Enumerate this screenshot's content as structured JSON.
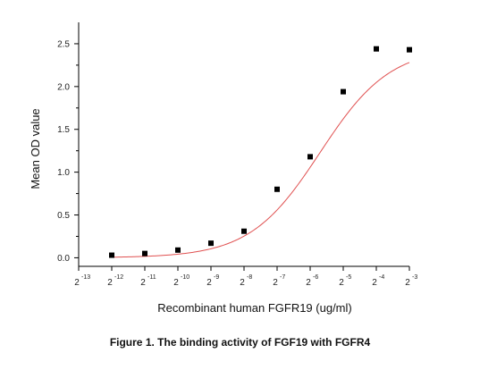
{
  "caption": "Figure 1. The binding activity of FGF19  with FGFR4",
  "chart_data": {
    "type": "scatter",
    "xlabel": "Recombinant human FGFR19 (ug/ml)",
    "ylabel": "Mean OD value",
    "x_scale": "log2",
    "x_tick_base": "2",
    "x_tick_exponents": [
      -13,
      -12,
      -11,
      -10,
      -9,
      -8,
      -7,
      -6,
      -5,
      -4,
      -3
    ],
    "xlim_exponent": [
      -13,
      -3
    ],
    "y_ticks": [
      "0.0",
      "0.5",
      "1.0",
      "1.5",
      "2.0",
      "2.5"
    ],
    "ylim": [
      -0.1,
      2.75
    ],
    "points": [
      {
        "x_exp": -12,
        "y": 0.03
      },
      {
        "x_exp": -11,
        "y": 0.05
      },
      {
        "x_exp": -10,
        "y": 0.09
      },
      {
        "x_exp": -9,
        "y": 0.17
      },
      {
        "x_exp": -8,
        "y": 0.31
      },
      {
        "x_exp": -7,
        "y": 0.8
      },
      {
        "x_exp": -6,
        "y": 1.18
      },
      {
        "x_exp": -5,
        "y": 1.94
      },
      {
        "x_exp": -4,
        "y": 2.44
      },
      {
        "x_exp": -3,
        "y": 2.43
      }
    ],
    "fit": {
      "type": "4PL",
      "bottom": 0.0,
      "top": 2.46,
      "ec50_exp": -5.7,
      "hill": 0.85
    },
    "colors": {
      "points": "#000000",
      "fit_line": "#e05050",
      "axis": "#000000"
    },
    "grid": false,
    "legend": "none"
  }
}
